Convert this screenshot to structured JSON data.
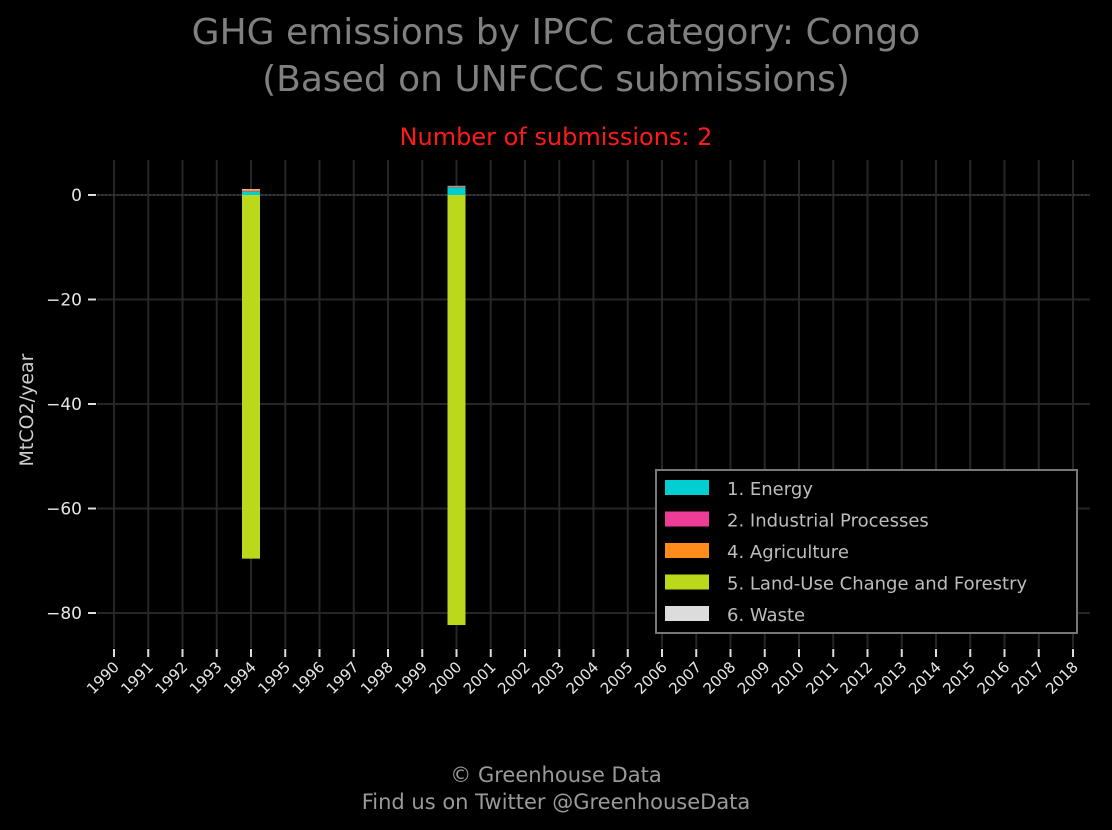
{
  "chart_data": {
    "type": "bar",
    "stacked": true,
    "title": "GHG emissions by IPCC category: Congo",
    "title_line2": "(Based on UNFCCC submissions)",
    "subtitle": "Number of submissions: 2",
    "ylabel": "MtCO2/year",
    "xlabel": "",
    "categories": [
      "1990",
      "1991",
      "1992",
      "1993",
      "1994",
      "1995",
      "1996",
      "1997",
      "1998",
      "1999",
      "2000",
      "2001",
      "2002",
      "2003",
      "2004",
      "2005",
      "2006",
      "2007",
      "2008",
      "2009",
      "2010",
      "2011",
      "2012",
      "2013",
      "2014",
      "2015",
      "2016",
      "2017",
      "2018"
    ],
    "yticks": [
      0,
      -20,
      -40,
      -60,
      -80
    ],
    "ytick_labels": [
      "0",
      "−20",
      "−40",
      "−60",
      "−80"
    ],
    "ylim": [
      -87,
      6
    ],
    "grid": true,
    "legend_position": "bottom-right",
    "series": [
      {
        "name": "1. Energy",
        "color": "#00ced1",
        "values": [
          null,
          null,
          null,
          null,
          0.7,
          null,
          null,
          null,
          null,
          null,
          1.5,
          null,
          null,
          null,
          null,
          null,
          null,
          null,
          null,
          null,
          null,
          null,
          null,
          null,
          null,
          null,
          null,
          null,
          null
        ]
      },
      {
        "name": "2. Industrial Processes",
        "color": "#ee3d96",
        "values": [
          null,
          null,
          null,
          null,
          0.05,
          null,
          null,
          null,
          null,
          null,
          0.05,
          null,
          null,
          null,
          null,
          null,
          null,
          null,
          null,
          null,
          null,
          null,
          null,
          null,
          null,
          null,
          null,
          null,
          null
        ]
      },
      {
        "name": "4. Agriculture",
        "color": "#ff8c1a",
        "values": [
          null,
          null,
          null,
          null,
          0.3,
          null,
          null,
          null,
          null,
          null,
          0.1,
          null,
          null,
          null,
          null,
          null,
          null,
          null,
          null,
          null,
          null,
          null,
          null,
          null,
          null,
          null,
          null,
          null,
          null
        ]
      },
      {
        "name": "5. Land-Use Change and Forestry",
        "color": "#bcd81a",
        "values": [
          null,
          null,
          null,
          null,
          -69.6,
          null,
          null,
          null,
          null,
          null,
          -82.3,
          null,
          null,
          null,
          null,
          null,
          null,
          null,
          null,
          null,
          null,
          null,
          null,
          null,
          null,
          null,
          null,
          null,
          null
        ]
      },
      {
        "name": "6. Waste",
        "color": "#dcdcdc",
        "values": [
          null,
          null,
          null,
          null,
          0.1,
          null,
          null,
          null,
          null,
          null,
          0.1,
          null,
          null,
          null,
          null,
          null,
          null,
          null,
          null,
          null,
          null,
          null,
          null,
          null,
          null,
          null,
          null,
          null,
          null
        ]
      }
    ]
  },
  "footer": {
    "line1": "© Greenhouse Data",
    "line2": "Find us on Twitter @GreenhouseData"
  }
}
